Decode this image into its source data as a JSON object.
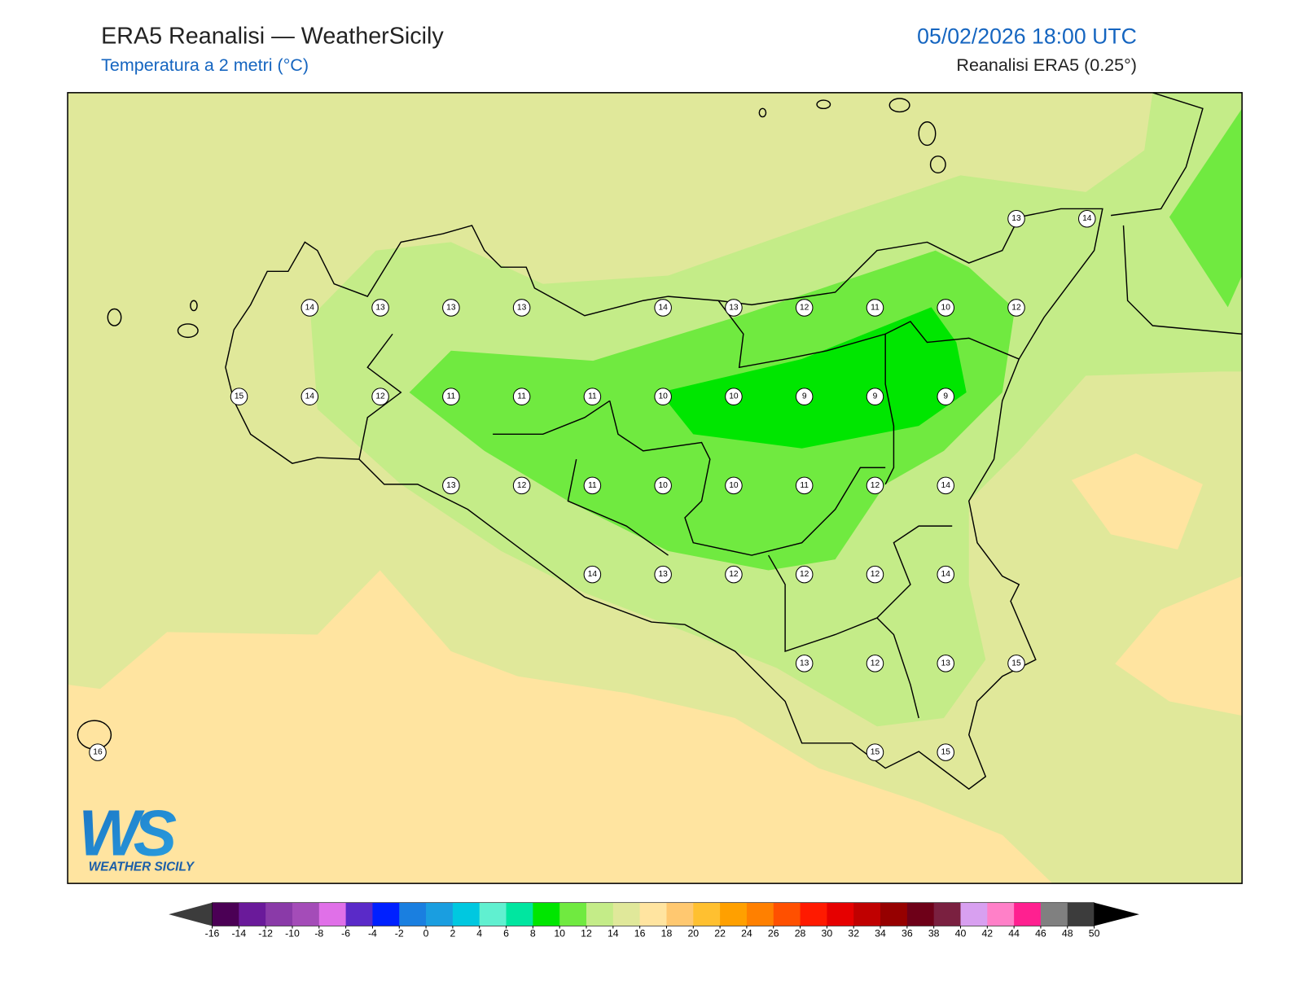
{
  "header": {
    "title": "ERA5 Reanalisi — WeatherSicily",
    "subtitle": "Temperatura a 2 metri (°C)",
    "date": "05/02/2026 18:00 UTC",
    "source": "Reanalisi ERA5 (0.25°)"
  },
  "map": {
    "grid": [
      [
        null,
        null,
        null,
        null,
        null,
        null,
        null,
        null,
        null,
        null,
        null,
        null,
        null,
        13,
        14
      ],
      [
        null,
        null,
        null,
        14,
        13,
        13,
        13,
        null,
        14,
        13,
        12,
        11,
        10,
        12,
        null
      ],
      [
        null,
        null,
        15,
        14,
        12,
        11,
        11,
        11,
        10,
        10,
        9,
        9,
        9,
        null,
        null
      ],
      [
        null,
        null,
        null,
        null,
        null,
        13,
        12,
        11,
        10,
        10,
        11,
        12,
        14,
        null,
        null
      ],
      [
        null,
        null,
        null,
        null,
        null,
        null,
        null,
        14,
        13,
        12,
        12,
        12,
        14,
        null,
        null
      ],
      [
        null,
        null,
        null,
        null,
        null,
        null,
        null,
        null,
        null,
        null,
        13,
        12,
        13,
        15,
        null
      ],
      [
        16,
        null,
        null,
        null,
        null,
        null,
        null,
        null,
        null,
        null,
        null,
        15,
        15,
        null,
        null
      ]
    ]
  },
  "logo": {
    "mark": "WS",
    "text": "WEATHER SICILY"
  },
  "colorbar": {
    "ticks": [
      -16,
      -14,
      -12,
      -10,
      -8,
      -6,
      -4,
      -2,
      0,
      2,
      4,
      6,
      8,
      10,
      12,
      14,
      16,
      18,
      20,
      22,
      24,
      26,
      28,
      30,
      32,
      34,
      36,
      38,
      40,
      42,
      44,
      46,
      48,
      50
    ],
    "colors": [
      "#4b0055",
      "#6a1a9a",
      "#8a3aa8",
      "#a44cb8",
      "#e070e8",
      "#5a2ac8",
      "#0020ff",
      "#1a7fe0",
      "#1a9ee0",
      "#00c8e0",
      "#60f0d0",
      "#00e6a0",
      "#00e600",
      "#70ea40",
      "#c4ec88",
      "#e0e89a",
      "#ffe4a0",
      "#ffc870",
      "#ffc030",
      "#ffa000",
      "#ff8000",
      "#ff5000",
      "#ff1a00",
      "#e60000",
      "#c00000",
      "#960000",
      "#6e0018",
      "#7a2040",
      "#d8a0f0",
      "#ff80c8",
      "#ff2090",
      "#808080",
      "#3c3c3c"
    ],
    "under_color": "#3c3c3c",
    "over_color": "#000000"
  }
}
